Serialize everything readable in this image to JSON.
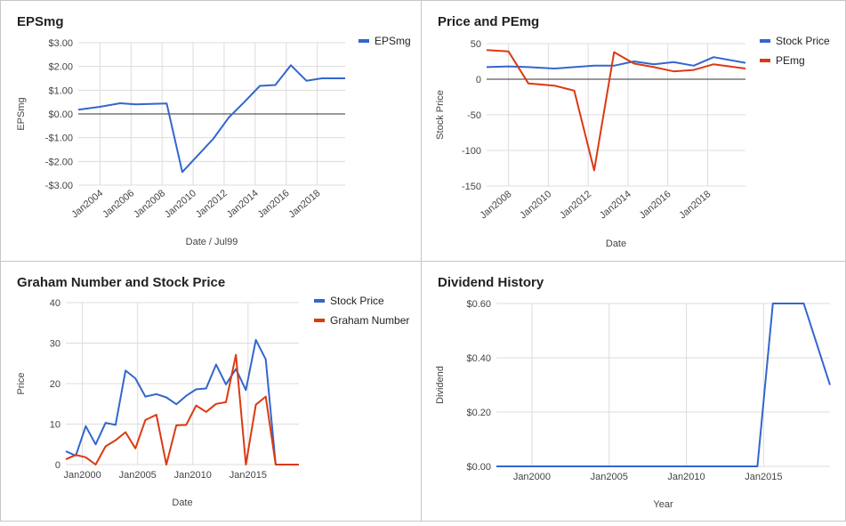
{
  "colors": {
    "blue": "#3366cc",
    "red": "#dc3912"
  },
  "chart_data": [
    {
      "id": "eps",
      "type": "line",
      "title": "EPSmg",
      "xlabel": "Date / Jul99",
      "ylabel": "EPSmg",
      "xlim": [
        2002.6,
        2019.8
      ],
      "ylim": [
        -3,
        3
      ],
      "yticks": [
        3,
        2,
        1,
        0,
        -1,
        -2,
        -3
      ],
      "ytick_labels": [
        "$3.00",
        "$2.00",
        "$1.00",
        "$0.00",
        "-$1.00",
        "-$2.00",
        "-$3.00"
      ],
      "xticks": [
        2004,
        2006,
        2008,
        2010,
        2012,
        2014,
        2016,
        2018
      ],
      "xtick_labels": [
        "Jan2004",
        "Jan2006",
        "Jan2008",
        "Jan2010",
        "Jan2012",
        "Jan2014",
        "Jan2016",
        "Jan2018"
      ],
      "zero_line": true,
      "legend_position": "top-right",
      "series": [
        {
          "name": "EPSmg",
          "color": "#3366cc",
          "x": [
            2002.6,
            2004.0,
            2005.3,
            2006.3,
            2007.3,
            2008.3,
            2009.3,
            2010.3,
            2011.3,
            2012.3,
            2013.3,
            2014.3,
            2015.3,
            2016.3,
            2017.3,
            2018.3,
            2019.8
          ],
          "y": [
            0.18,
            0.3,
            0.45,
            0.4,
            0.42,
            0.44,
            -2.45,
            -1.75,
            -1.05,
            -0.15,
            0.5,
            1.18,
            1.22,
            2.05,
            1.4,
            1.5,
            1.5
          ]
        }
      ]
    },
    {
      "id": "price-pe",
      "type": "line",
      "title": "Price and PEmg",
      "xlabel": "Date",
      "ylabel": "Stock Price",
      "xlim": [
        2006.9,
        2019.9
      ],
      "ylim": [
        -150,
        50
      ],
      "yticks": [
        50,
        0,
        -50,
        -100,
        -150
      ],
      "ytick_labels": [
        "50",
        "0",
        "-50",
        "-100",
        "-150"
      ],
      "xticks": [
        2008,
        2010,
        2012,
        2014,
        2016,
        2018
      ],
      "xtick_labels": [
        "Jan2008",
        "Jan2010",
        "Jan2012",
        "Jan2014",
        "Jan2016",
        "Jan2018"
      ],
      "zero_line": true,
      "legend_position": "top-right",
      "series": [
        {
          "name": "Stock Price",
          "color": "#3366cc",
          "x": [
            2006.9,
            2008.0,
            2009.0,
            2010.3,
            2011.3,
            2012.3,
            2013.3,
            2014.3,
            2015.3,
            2016.3,
            2017.3,
            2018.3,
            2019.9
          ],
          "y": [
            17,
            18,
            17,
            15,
            17,
            19,
            19,
            25,
            21,
            24,
            19,
            31,
            23
          ]
        },
        {
          "name": "PEmg",
          "color": "#dc3912",
          "x": [
            2006.9,
            2008.0,
            2009.0,
            2010.3,
            2011.3,
            2012.3,
            2013.3,
            2014.3,
            2015.3,
            2016.3,
            2017.3,
            2018.3,
            2019.9
          ],
          "y": [
            41,
            39,
            -6,
            -9,
            -16,
            -128,
            38,
            22,
            17,
            11,
            13,
            21,
            15
          ]
        }
      ]
    },
    {
      "id": "graham",
      "type": "line",
      "title": "Graham Number and Stock Price",
      "xlabel": "Date",
      "ylabel": "Price",
      "xlim": [
        1998.5,
        2019.6
      ],
      "ylim": [
        0,
        40
      ],
      "yticks": [
        40,
        30,
        20,
        10,
        0
      ],
      "ytick_labels": [
        "40",
        "30",
        "20",
        "10",
        "0"
      ],
      "xticks": [
        2000,
        2005,
        2010,
        2015
      ],
      "xtick_labels": [
        "Jan2000",
        "Jan2005",
        "Jan2010",
        "Jan2015"
      ],
      "legend_position": "top-right",
      "series": [
        {
          "name": "Stock Price",
          "color": "#3366cc",
          "x": [
            1998.5,
            1999.4,
            2000.3,
            2001.2,
            2002.1,
            2003.0,
            2003.9,
            2004.8,
            2005.7,
            2006.7,
            2007.6,
            2008.5,
            2009.4,
            2010.3,
            2011.2,
            2012.1,
            2013.0,
            2013.9,
            2014.8,
            2015.7,
            2016.6,
            2017.5,
            2018.4,
            2019.6
          ],
          "y": [
            3.3,
            2.2,
            9.5,
            5.0,
            10.3,
            9.8,
            23.2,
            21.3,
            16.8,
            17.4,
            16.6,
            14.9,
            17.0,
            18.6,
            18.8,
            24.7,
            19.8,
            23.6,
            18.4,
            30.8,
            26.0,
            0,
            0,
            0
          ]
        },
        {
          "name": "Graham Number",
          "color": "#dc3912",
          "x": [
            1998.5,
            1999.4,
            2000.3,
            2001.2,
            2002.1,
            2003.0,
            2003.9,
            2004.8,
            2005.7,
            2006.7,
            2007.6,
            2008.5,
            2009.4,
            2010.3,
            2011.2,
            2012.1,
            2013.0,
            2013.9,
            2014.8,
            2015.7,
            2016.6,
            2017.5,
            2018.4,
            2019.6
          ],
          "y": [
            1.3,
            2.4,
            1.8,
            0,
            4.5,
            6.0,
            8.0,
            4.0,
            11.0,
            12.3,
            0,
            9.7,
            9.8,
            14.6,
            13.0,
            15.0,
            15.4,
            27.1,
            0,
            14.8,
            16.8,
            0,
            0,
            0
          ]
        }
      ]
    },
    {
      "id": "dividend",
      "type": "line",
      "title": "Dividend History",
      "xlabel": "Year",
      "ylabel": "Dividend",
      "xlim": [
        1997.7,
        2019.3
      ],
      "ylim": [
        0,
        0.6
      ],
      "yticks": [
        0.6,
        0.4,
        0.2,
        0
      ],
      "ytick_labels": [
        "$0.60",
        "$0.40",
        "$0.20",
        "$0.00"
      ],
      "xticks": [
        2000,
        2005,
        2010,
        2015
      ],
      "xtick_labels": [
        "Jan2000",
        "Jan2005",
        "Jan2010",
        "Jan2015"
      ],
      "legend_position": "none",
      "series": [
        {
          "name": "",
          "color": "#3366cc",
          "x": [
            1997.7,
            2000,
            2005,
            2010,
            2013.6,
            2014.6,
            2015.6,
            2016.6,
            2017.6,
            2019.3
          ],
          "y": [
            0,
            0,
            0,
            0,
            0,
            0.0,
            0.6,
            0.6,
            0.6,
            0.3
          ]
        }
      ]
    }
  ]
}
